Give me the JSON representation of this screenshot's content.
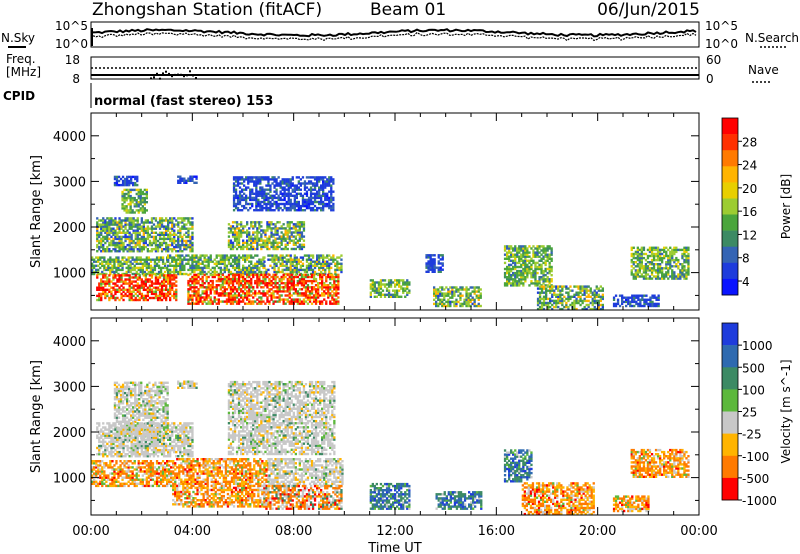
{
  "header": {
    "station_title": "Zhongshan Station (fitACF)",
    "beam": "Beam 01",
    "date": "06/Jun/2015",
    "cpid_label": "CPID",
    "cpid_text": "normal (fast stereo) 153"
  },
  "top_panels": {
    "nsky": {
      "left_label": "N.Sky",
      "right_label": "N.Search",
      "left_ticks": [
        "10^5",
        "10^0"
      ],
      "right_ticks": [
        "10^5",
        "10^0"
      ]
    },
    "freq": {
      "left_label_1": "Freq.",
      "left_label_2": "[MHz]",
      "right_label": "Nave",
      "left_ticks": [
        "18",
        "8"
      ],
      "right_ticks": [
        "60",
        "0"
      ]
    }
  },
  "chart_data": [
    {
      "type": "heatmap",
      "name": "power",
      "ylabel": "Slant Range [km]",
      "colorbar_label": "Power [dB]",
      "colorbar_ticks": [
        "28",
        "24",
        "20",
        "16",
        "12",
        "8",
        "4"
      ],
      "colorbar_colors": [
        "#ff0000",
        "#ff3000",
        "#ff7a00",
        "#ffb400",
        "#e8cf00",
        "#9ccc32",
        "#4aa53c",
        "#3c8a64",
        "#3464b4",
        "#1e3cdc",
        "#0a14ff"
      ],
      "x_ticks": [
        "00:00",
        "04:00",
        "08:00",
        "12:00",
        "16:00",
        "20:00",
        "00:00"
      ],
      "y_ticks": [
        "4000",
        "3000",
        "2000",
        "1000"
      ],
      "xlim_hours": [
        0,
        24
      ],
      "ylim_km": [
        180,
        4500
      ],
      "regions": [
        {
          "t0": 0.9,
          "t1": 1.8,
          "r0": 2900,
          "r1": 3100,
          "level": "low"
        },
        {
          "t0": 3.4,
          "t1": 4.2,
          "r0": 2950,
          "r1": 3100,
          "level": "low"
        },
        {
          "t0": 5.6,
          "t1": 9.6,
          "r0": 2350,
          "r1": 3100,
          "level": "low"
        },
        {
          "t0": 1.2,
          "t1": 2.2,
          "r0": 2300,
          "r1": 2800,
          "level": "mid"
        },
        {
          "t0": 0.2,
          "t1": 4.0,
          "r0": 1450,
          "r1": 2200,
          "level": "mixed"
        },
        {
          "t0": 5.4,
          "t1": 8.4,
          "r0": 1500,
          "r1": 2100,
          "level": "mixed"
        },
        {
          "t0": 0.0,
          "t1": 3.0,
          "r0": 950,
          "r1": 1350,
          "level": "mid"
        },
        {
          "t0": 3.0,
          "t1": 6.8,
          "r0": 950,
          "r1": 1400,
          "level": "mid"
        },
        {
          "t0": 6.8,
          "t1": 9.9,
          "r0": 950,
          "r1": 1400,
          "level": "mixed"
        },
        {
          "t0": 0.2,
          "t1": 3.4,
          "r0": 380,
          "r1": 950,
          "level": "high"
        },
        {
          "t0": 3.8,
          "t1": 9.8,
          "r0": 300,
          "r1": 950,
          "level": "high"
        },
        {
          "t0": 11.0,
          "t1": 12.6,
          "r0": 450,
          "r1": 850,
          "level": "mid"
        },
        {
          "t0": 13.2,
          "t1": 13.9,
          "r0": 1000,
          "r1": 1400,
          "level": "low"
        },
        {
          "t0": 13.5,
          "t1": 15.4,
          "r0": 250,
          "r1": 700,
          "level": "mixed"
        },
        {
          "t0": 16.3,
          "t1": 18.2,
          "r0": 700,
          "r1": 1600,
          "level": "mid"
        },
        {
          "t0": 17.6,
          "t1": 20.2,
          "r0": 180,
          "r1": 700,
          "level": "mixed"
        },
        {
          "t0": 21.3,
          "t1": 23.6,
          "r0": 850,
          "r1": 1550,
          "level": "mid"
        },
        {
          "t0": 20.6,
          "t1": 22.4,
          "r0": 250,
          "r1": 500,
          "level": "low"
        }
      ]
    },
    {
      "type": "heatmap",
      "name": "velocity",
      "ylabel": "Slant Range [km]",
      "colorbar_label": "Velocity [m s^-1]",
      "colorbar_ticks": [
        "1000",
        "500",
        "100",
        "25",
        "-25",
        "-100",
        "-500",
        "-1000"
      ],
      "colorbar_colors": [
        "#1e3cdc",
        "#2e6ab0",
        "#3c8a64",
        "#5cb83c",
        "#c8c8c8",
        "#ffb400",
        "#ff7a00",
        "#ff0000"
      ],
      "x_ticks": [
        "00:00",
        "04:00",
        "08:00",
        "12:00",
        "16:00",
        "20:00",
        "00:00"
      ],
      "y_ticks": [
        "4000",
        "3000",
        "2000",
        "1000"
      ],
      "xlabel": "Time UT",
      "xlim_hours": [
        0,
        24
      ],
      "ylim_km": [
        180,
        4500
      ],
      "regions": [
        {
          "t0": 0.9,
          "t1": 3.0,
          "r0": 1800,
          "r1": 3100,
          "level": "zero"
        },
        {
          "t0": 3.4,
          "t1": 4.2,
          "r0": 2950,
          "r1": 3100,
          "level": "zero"
        },
        {
          "t0": 5.4,
          "t1": 9.6,
          "r0": 1500,
          "r1": 3100,
          "level": "zero"
        },
        {
          "t0": 0.2,
          "t1": 4.0,
          "r0": 1450,
          "r1": 2200,
          "level": "zero"
        },
        {
          "t0": 0.0,
          "t1": 3.2,
          "r0": 800,
          "r1": 1350,
          "level": "neg"
        },
        {
          "t0": 3.2,
          "t1": 7.0,
          "r0": 350,
          "r1": 1400,
          "level": "neg"
        },
        {
          "t0": 7.0,
          "t1": 9.9,
          "r0": 800,
          "r1": 1400,
          "level": "zero"
        },
        {
          "t0": 6.8,
          "t1": 9.9,
          "r0": 300,
          "r1": 800,
          "level": "mixedneg"
        },
        {
          "t0": 11.0,
          "t1": 12.6,
          "r0": 300,
          "r1": 850,
          "level": "pos"
        },
        {
          "t0": 13.6,
          "t1": 15.4,
          "r0": 300,
          "r1": 700,
          "level": "pos"
        },
        {
          "t0": 16.3,
          "t1": 17.4,
          "r0": 900,
          "r1": 1600,
          "level": "pos"
        },
        {
          "t0": 17.0,
          "t1": 19.8,
          "r0": 180,
          "r1": 900,
          "level": "neg"
        },
        {
          "t0": 21.3,
          "t1": 23.6,
          "r0": 1000,
          "r1": 1600,
          "level": "neg"
        },
        {
          "t0": 20.6,
          "t1": 22.0,
          "r0": 250,
          "r1": 600,
          "level": "neg"
        }
      ]
    }
  ]
}
